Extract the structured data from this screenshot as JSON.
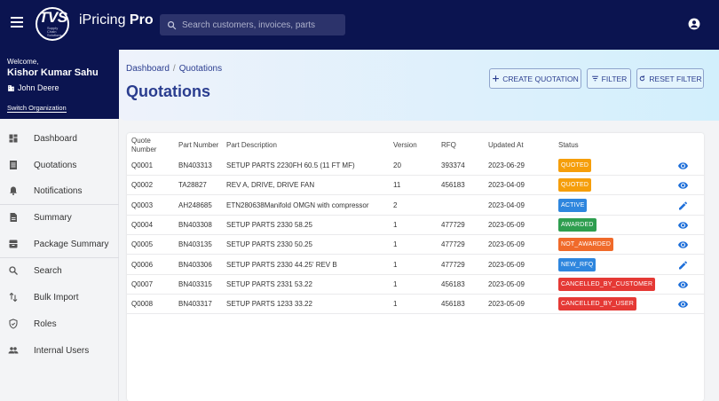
{
  "app": {
    "logo_text": "TVS",
    "logo_sub": "Supply Chain Solutions",
    "title_prefix": "iPricing",
    "title_bold": "Pro",
    "search_placeholder": "Search customers, invoices, parts"
  },
  "user": {
    "welcome": "Welcome,",
    "name": "Kishor Kumar Sahu",
    "organization": "John Deere",
    "switch_label": "Switch Organization"
  },
  "sidebar": {
    "items": [
      {
        "label": "Dashboard",
        "icon": "dashboard-icon"
      },
      {
        "label": "Quotations",
        "icon": "list-icon"
      },
      {
        "label": "Notifications",
        "icon": "bell-icon"
      },
      {
        "label": "Summary",
        "icon": "document-icon"
      },
      {
        "label": "Package Summary",
        "icon": "package-icon"
      },
      {
        "label": "Search",
        "icon": "search-icon"
      },
      {
        "label": "Bulk Import",
        "icon": "import-icon"
      },
      {
        "label": "Roles",
        "icon": "shield-icon"
      },
      {
        "label": "Internal Users",
        "icon": "people-icon"
      }
    ]
  },
  "header": {
    "breadcrumb": [
      "Dashboard",
      "Quotations"
    ],
    "title": "Quotations",
    "create_label": "CREATE QUOTATION",
    "filter_label": "FILTER",
    "reset_label": "RESET FILTER"
  },
  "table": {
    "columns": {
      "quote_l1": "Quote",
      "quote_l2": "Number",
      "part_number": "Part Number",
      "description": "Part Description",
      "version": "Version",
      "rfq": "RFQ",
      "updated": "Updated At",
      "status": "Status"
    },
    "rows": [
      {
        "quote": "Q0001",
        "part": "BN403313",
        "desc": "SETUP PARTS 2230FH 60.5 (11 FT MF)",
        "version": "20",
        "rfq": "393374",
        "updated": "2023-06-29",
        "status": "QUOTED",
        "status_color": "#f59e0b",
        "action": "view"
      },
      {
        "quote": "Q0002",
        "part": "TA28827",
        "desc": "REV A, DRIVE, DRIVE FAN",
        "version": "11",
        "rfq": "456183",
        "updated": "2023-04-09",
        "status": "QUOTED",
        "status_color": "#f59e0b",
        "action": "view"
      },
      {
        "quote": "Q0003",
        "part": "AH248685",
        "desc": "ETN280638Manifold OMGN with compressor",
        "version": "2",
        "rfq": "",
        "updated": "2023-04-09",
        "status": "ACTIVE",
        "status_color": "#2e86de",
        "action": "edit"
      },
      {
        "quote": "Q0004",
        "part": "BN403308",
        "desc": "SETUP PARTS 2330 58.25",
        "version": "1",
        "rfq": "477729",
        "updated": "2023-05-09",
        "status": "AWARDED",
        "status_color": "#2e9e4f",
        "action": "view"
      },
      {
        "quote": "Q0005",
        "part": "BN403135",
        "desc": "SETUP PARTS 2330 50.25",
        "version": "1",
        "rfq": "477729",
        "updated": "2023-05-09",
        "status": "NOT_AWARDED",
        "status_color": "#f06a2a",
        "action": "view"
      },
      {
        "quote": "Q0006",
        "part": "BN403306",
        "desc": "SETUP PARTS 2330 44.25' REV B",
        "version": "1",
        "rfq": "477729",
        "updated": "2023-05-09",
        "status": "NEW_RFQ",
        "status_color": "#2e86de",
        "action": "edit"
      },
      {
        "quote": "Q0007",
        "part": "BN403315",
        "desc": "SETUP PARTS 2331 53.22",
        "version": "1",
        "rfq": "456183",
        "updated": "2023-05-09",
        "status": "CANCELLED_BY_CUSTOMER",
        "status_color": "#e53935",
        "action": "view"
      },
      {
        "quote": "Q0008",
        "part": "BN403317",
        "desc": "SETUP PARTS 1233 33.22",
        "version": "1",
        "rfq": "456183",
        "updated": "2023-05-09",
        "status": "CANCELLED_BY_USER",
        "status_color": "#e53935",
        "action": "view"
      }
    ]
  },
  "colors": {
    "navy": "#0b1450",
    "accent": "#2a3d8f",
    "icon_blue": "#1e6fd9"
  }
}
